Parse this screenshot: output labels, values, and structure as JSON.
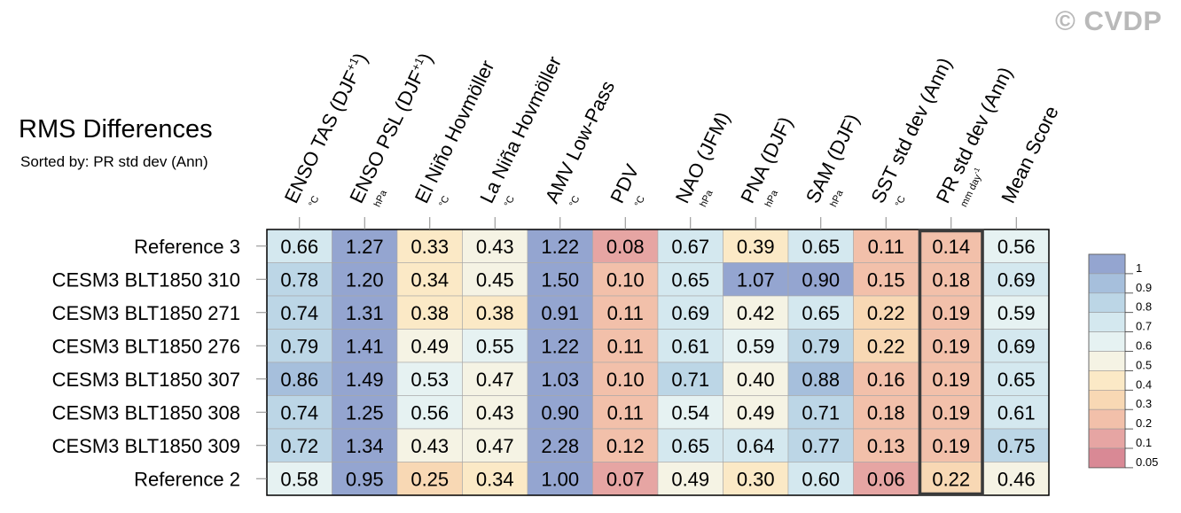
{
  "chart_data": {
    "type": "heatmap",
    "title": "RMS Differences",
    "subtitle": "Sorted by: PR std dev (Ann)",
    "columns": [
      {
        "name": "ENSO TAS (DJF+1)",
        "unit": "°C"
      },
      {
        "name": "ENSO PSL (DJF+1)",
        "unit": "hPa"
      },
      {
        "name": "El Niño Hovmöller",
        "unit": "°C"
      },
      {
        "name": "La Niña Hovmöller",
        "unit": "°C"
      },
      {
        "name": "AMV Low-Pass",
        "unit": "°C"
      },
      {
        "name": "PDV",
        "unit": "°C"
      },
      {
        "name": "NAO (JFM)",
        "unit": "hPa"
      },
      {
        "name": "PNA (DJF)",
        "unit": "hPa"
      },
      {
        "name": "SAM (DJF)",
        "unit": "hPa"
      },
      {
        "name": "SST std dev (Ann)",
        "unit": "°C"
      },
      {
        "name": "PR std dev (Ann)",
        "unit": "mm day-1"
      },
      {
        "name": "Mean Score",
        "unit": ""
      }
    ],
    "rows": [
      {
        "label": "Reference 3",
        "values": [
          0.66,
          1.27,
          0.33,
          0.43,
          1.22,
          0.08,
          0.67,
          0.39,
          0.65,
          0.11,
          0.14,
          0.56
        ]
      },
      {
        "label": "CESM3 BLT1850 310",
        "values": [
          0.78,
          1.2,
          0.34,
          0.45,
          1.5,
          0.1,
          0.65,
          1.07,
          0.9,
          0.15,
          0.18,
          0.69
        ]
      },
      {
        "label": "CESM3 BLT1850 271",
        "values": [
          0.74,
          1.31,
          0.38,
          0.38,
          0.91,
          0.11,
          0.69,
          0.42,
          0.65,
          0.22,
          0.19,
          0.59
        ]
      },
      {
        "label": "CESM3 BLT1850 276",
        "values": [
          0.79,
          1.41,
          0.49,
          0.55,
          1.22,
          0.11,
          0.61,
          0.59,
          0.79,
          0.22,
          0.19,
          0.69
        ]
      },
      {
        "label": "CESM3 BLT1850 307",
        "values": [
          0.86,
          1.49,
          0.53,
          0.47,
          1.03,
          0.1,
          0.71,
          0.4,
          0.88,
          0.16,
          0.19,
          0.65
        ]
      },
      {
        "label": "CESM3 BLT1850 308",
        "values": [
          0.74,
          1.25,
          0.56,
          0.43,
          0.9,
          0.11,
          0.54,
          0.49,
          0.71,
          0.18,
          0.19,
          0.61
        ]
      },
      {
        "label": "CESM3 BLT1850 309",
        "values": [
          0.72,
          1.34,
          0.43,
          0.47,
          2.28,
          0.12,
          0.65,
          0.64,
          0.77,
          0.13,
          0.19,
          0.75
        ]
      },
      {
        "label": "Reference 2",
        "values": [
          0.58,
          0.95,
          0.25,
          0.34,
          1.0,
          0.07,
          0.49,
          0.3,
          0.6,
          0.06,
          0.22,
          0.46
        ]
      }
    ],
    "highlighted_column": "PR std dev (Ann)",
    "legend": {
      "position": "right",
      "tick_labels": [
        "1",
        "0.9",
        "0.8",
        "0.7",
        "0.6",
        "0.5",
        "0.4",
        "0.3",
        "0.2",
        "0.1",
        "0.05"
      ],
      "colors": [
        "#d98995",
        "#e6a5a3",
        "#f2c0aa",
        "#f8d8b4",
        "#fbe9c6",
        "#f5f3e4",
        "#e6f2f2",
        "#d4e8ef",
        "#bcd6e6",
        "#a6bfdc",
        "#94a5d0"
      ]
    }
  },
  "watermark": "© CVDP"
}
